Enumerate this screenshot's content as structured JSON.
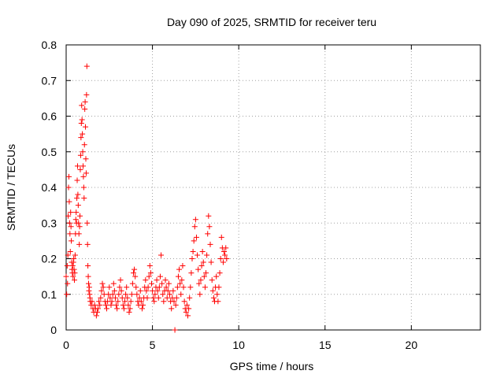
{
  "chart_data": {
    "type": "scatter",
    "title": "Day 090 of 2025, SRMTID for receiver teru",
    "xlabel": "GPS time / hours",
    "ylabel": "SRMTID / TECUs",
    "xlim": [
      0,
      24
    ],
    "ylim": [
      0,
      0.8
    ],
    "xticks": [
      0,
      5,
      10,
      15,
      20
    ],
    "xtick_labels": [
      "0",
      "5",
      "10",
      "15",
      "20"
    ],
    "yticks": [
      0,
      0.1,
      0.2,
      0.3,
      0.4,
      0.5,
      0.6,
      0.7,
      0.8
    ],
    "ytick_labels": [
      "0",
      "0.1",
      "0.2",
      "0.3",
      "0.4",
      "0.5",
      "0.6",
      "0.7",
      "0.8"
    ],
    "grid": true,
    "marker": "+",
    "color": "#ff0000",
    "series": [
      {
        "name": "teru",
        "points": [
          [
            0.0,
            0.15
          ],
          [
            0.03,
            0.1
          ],
          [
            0.06,
            0.18
          ],
          [
            0.08,
            0.13
          ],
          [
            0.1,
            0.21
          ],
          [
            0.12,
            0.32
          ],
          [
            0.14,
            0.4
          ],
          [
            0.16,
            0.43
          ],
          [
            0.18,
            0.36
          ],
          [
            0.2,
            0.3
          ],
          [
            0.22,
            0.27
          ],
          [
            0.24,
            0.22
          ],
          [
            0.26,
            0.33
          ],
          [
            0.28,
            0.29
          ],
          [
            0.3,
            0.25
          ],
          [
            0.32,
            0.19
          ],
          [
            0.34,
            0.17
          ],
          [
            0.36,
            0.16
          ],
          [
            0.38,
            0.18
          ],
          [
            0.4,
            0.15
          ],
          [
            0.42,
            0.19
          ],
          [
            0.44,
            0.2
          ],
          [
            0.46,
            0.17
          ],
          [
            0.48,
            0.14
          ],
          [
            0.5,
            0.16
          ],
          [
            0.52,
            0.21
          ],
          [
            0.54,
            0.27
          ],
          [
            0.56,
            0.31
          ],
          [
            0.58,
            0.33
          ],
          [
            0.6,
            0.3
          ],
          [
            0.62,
            0.37
          ],
          [
            0.64,
            0.42
          ],
          [
            0.66,
            0.46
          ],
          [
            0.68,
            0.38
          ],
          [
            0.7,
            0.35
          ],
          [
            0.72,
            0.3
          ],
          [
            0.74,
            0.27
          ],
          [
            0.76,
            0.24
          ],
          [
            0.78,
            0.29
          ],
          [
            0.8,
            0.32
          ],
          [
            0.82,
            0.45
          ],
          [
            0.84,
            0.49
          ],
          [
            0.86,
            0.54
          ],
          [
            0.88,
            0.58
          ],
          [
            0.9,
            0.63
          ],
          [
            0.92,
            0.59
          ],
          [
            0.94,
            0.55
          ],
          [
            0.96,
            0.5
          ],
          [
            0.98,
            0.46
          ],
          [
            1.0,
            0.43
          ],
          [
            1.02,
            0.4
          ],
          [
            1.04,
            0.37
          ],
          [
            1.06,
            0.52
          ],
          [
            1.08,
            0.62
          ],
          [
            1.1,
            0.64
          ],
          [
            1.12,
            0.57
          ],
          [
            1.14,
            0.48
          ],
          [
            1.16,
            0.44
          ],
          [
            1.18,
            0.66
          ],
          [
            1.2,
            0.74
          ],
          [
            1.22,
            0.3
          ],
          [
            1.24,
            0.24
          ],
          [
            1.26,
            0.18
          ],
          [
            1.28,
            0.15
          ],
          [
            1.3,
            0.13
          ],
          [
            1.32,
            0.11
          ],
          [
            1.34,
            0.12
          ],
          [
            1.36,
            0.1
          ],
          [
            1.38,
            0.09
          ],
          [
            1.4,
            0.08
          ],
          [
            1.45,
            0.07
          ],
          [
            1.5,
            0.08
          ],
          [
            1.55,
            0.06
          ],
          [
            1.6,
            0.05
          ],
          [
            1.65,
            0.07
          ],
          [
            1.7,
            0.06
          ],
          [
            1.75,
            0.04
          ],
          [
            1.8,
            0.05
          ],
          [
            1.85,
            0.06
          ],
          [
            1.9,
            0.08
          ],
          [
            1.95,
            0.07
          ],
          [
            2.0,
            0.09
          ],
          [
            2.05,
            0.11
          ],
          [
            2.1,
            0.13
          ],
          [
            2.15,
            0.12
          ],
          [
            2.2,
            0.1
          ],
          [
            2.25,
            0.08
          ],
          [
            2.3,
            0.07
          ],
          [
            2.35,
            0.06
          ],
          [
            2.4,
            0.08
          ],
          [
            2.45,
            0.1
          ],
          [
            2.5,
            0.12
          ],
          [
            2.55,
            0.09
          ],
          [
            2.6,
            0.07
          ],
          [
            2.65,
            0.08
          ],
          [
            2.7,
            0.1
          ],
          [
            2.75,
            0.13
          ],
          [
            2.8,
            0.11
          ],
          [
            2.85,
            0.09
          ],
          [
            2.9,
            0.07
          ],
          [
            2.95,
            0.06
          ],
          [
            3.0,
            0.08
          ],
          [
            3.05,
            0.1
          ],
          [
            3.1,
            0.12
          ],
          [
            3.15,
            0.14
          ],
          [
            3.2,
            0.11
          ],
          [
            3.25,
            0.09
          ],
          [
            3.3,
            0.07
          ],
          [
            3.35,
            0.06
          ],
          [
            3.4,
            0.08
          ],
          [
            3.45,
            0.1
          ],
          [
            3.5,
            0.12
          ],
          [
            3.55,
            0.09
          ],
          [
            3.6,
            0.07
          ],
          [
            3.65,
            0.05
          ],
          [
            3.7,
            0.06
          ],
          [
            3.75,
            0.08
          ],
          [
            3.8,
            0.1
          ],
          [
            3.85,
            0.13
          ],
          [
            3.9,
            0.16
          ],
          [
            3.95,
            0.17
          ],
          [
            4.0,
            0.15
          ],
          [
            4.05,
            0.12
          ],
          [
            4.1,
            0.1
          ],
          [
            4.15,
            0.08
          ],
          [
            4.2,
            0.07
          ],
          [
            4.25,
            0.09
          ],
          [
            4.3,
            0.11
          ],
          [
            4.35,
            0.08
          ],
          [
            4.4,
            0.06
          ],
          [
            4.45,
            0.07
          ],
          [
            4.5,
            0.09
          ],
          [
            4.55,
            0.12
          ],
          [
            4.6,
            0.14
          ],
          [
            4.65,
            0.11
          ],
          [
            4.7,
            0.09
          ],
          [
            4.75,
            0.12
          ],
          [
            4.8,
            0.15
          ],
          [
            4.85,
            0.18
          ],
          [
            4.9,
            0.16
          ],
          [
            4.95,
            0.13
          ],
          [
            5.0,
            0.11
          ],
          [
            5.05,
            0.09
          ],
          [
            5.1,
            0.08
          ],
          [
            5.15,
            0.1
          ],
          [
            5.2,
            0.12
          ],
          [
            5.25,
            0.14
          ],
          [
            5.3,
            0.11
          ],
          [
            5.35,
            0.09
          ],
          [
            5.4,
            0.12
          ],
          [
            5.45,
            0.15
          ],
          [
            5.5,
            0.21
          ],
          [
            5.55,
            0.13
          ],
          [
            5.6,
            0.1
          ],
          [
            5.65,
            0.08
          ],
          [
            5.7,
            0.11
          ],
          [
            5.75,
            0.14
          ],
          [
            5.8,
            0.12
          ],
          [
            5.85,
            0.09
          ],
          [
            5.9,
            0.11
          ],
          [
            5.95,
            0.13
          ],
          [
            6.0,
            0.1
          ],
          [
            6.05,
            0.08
          ],
          [
            6.1,
            0.06
          ],
          [
            6.15,
            0.09
          ],
          [
            6.2,
            0.11
          ],
          [
            6.25,
            0.08
          ],
          [
            6.3,
            0.0
          ],
          [
            6.35,
            0.07
          ],
          [
            6.4,
            0.09
          ],
          [
            6.45,
            0.12
          ],
          [
            6.5,
            0.15
          ],
          [
            6.55,
            0.17
          ],
          [
            6.6,
            0.13
          ],
          [
            6.65,
            0.1
          ],
          [
            6.7,
            0.14
          ],
          [
            6.75,
            0.18
          ],
          [
            6.8,
            0.12
          ],
          [
            6.85,
            0.08
          ],
          [
            6.9,
            0.06
          ],
          [
            6.95,
            0.05
          ],
          [
            7.0,
            0.07
          ],
          [
            7.05,
            0.04
          ],
          [
            7.1,
            0.06
          ],
          [
            7.15,
            0.09
          ],
          [
            7.2,
            0.12
          ],
          [
            7.25,
            0.16
          ],
          [
            7.3,
            0.2
          ],
          [
            7.35,
            0.22
          ],
          [
            7.4,
            0.25
          ],
          [
            7.45,
            0.29
          ],
          [
            7.5,
            0.31
          ],
          [
            7.55,
            0.26
          ],
          [
            7.6,
            0.21
          ],
          [
            7.65,
            0.17
          ],
          [
            7.7,
            0.13
          ],
          [
            7.75,
            0.1
          ],
          [
            7.8,
            0.14
          ],
          [
            7.85,
            0.18
          ],
          [
            7.9,
            0.22
          ],
          [
            7.95,
            0.19
          ],
          [
            8.0,
            0.15
          ],
          [
            8.05,
            0.12
          ],
          [
            8.1,
            0.16
          ],
          [
            8.15,
            0.21
          ],
          [
            8.2,
            0.27
          ],
          [
            8.25,
            0.32
          ],
          [
            8.3,
            0.29
          ],
          [
            8.35,
            0.24
          ],
          [
            8.4,
            0.19
          ],
          [
            8.45,
            0.14
          ],
          [
            8.5,
            0.11
          ],
          [
            8.55,
            0.09
          ],
          [
            8.6,
            0.08
          ],
          [
            8.65,
            0.12
          ],
          [
            8.7,
            0.15
          ],
          [
            8.75,
            0.1
          ],
          [
            8.8,
            0.08
          ],
          [
            8.85,
            0.12
          ],
          [
            8.9,
            0.16
          ],
          [
            8.95,
            0.2
          ],
          [
            9.0,
            0.26
          ],
          [
            9.05,
            0.23
          ],
          [
            9.1,
            0.19
          ],
          [
            9.15,
            0.22
          ],
          [
            9.2,
            0.21
          ],
          [
            9.25,
            0.23
          ],
          [
            9.3,
            0.2
          ]
        ]
      }
    ]
  }
}
